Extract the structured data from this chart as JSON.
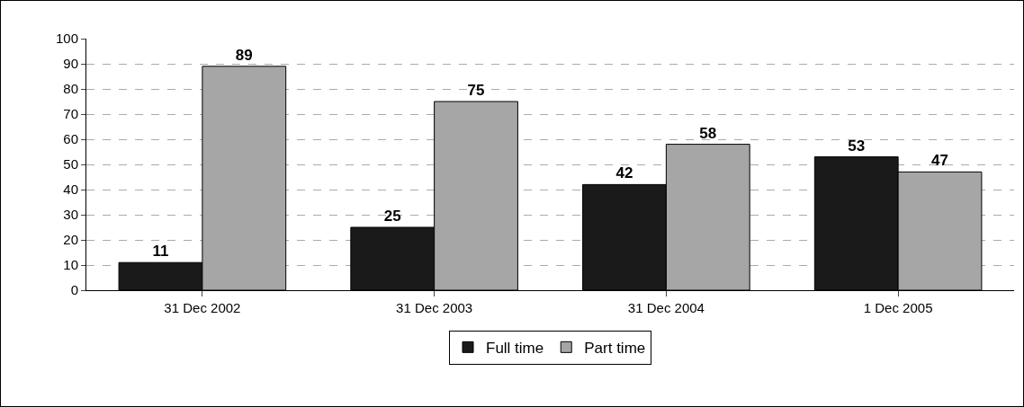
{
  "chart_data": {
    "type": "bar",
    "categories": [
      "31 Dec 2002",
      "31 Dec 2003",
      "31 Dec 2004",
      "1 Dec 2005"
    ],
    "series": [
      {
        "name": "Full time",
        "color": "#1a1a1a",
        "values": [
          11,
          25,
          42,
          53
        ]
      },
      {
        "name": "Part time",
        "color": "#a6a6a6",
        "values": [
          89,
          75,
          58,
          47
        ]
      }
    ],
    "ylim": [
      0,
      100
    ],
    "yticks": [
      0,
      10,
      20,
      30,
      40,
      50,
      60,
      70,
      80,
      90,
      100
    ],
    "grid": "y",
    "legend": "bottom",
    "data_labels": true
  }
}
